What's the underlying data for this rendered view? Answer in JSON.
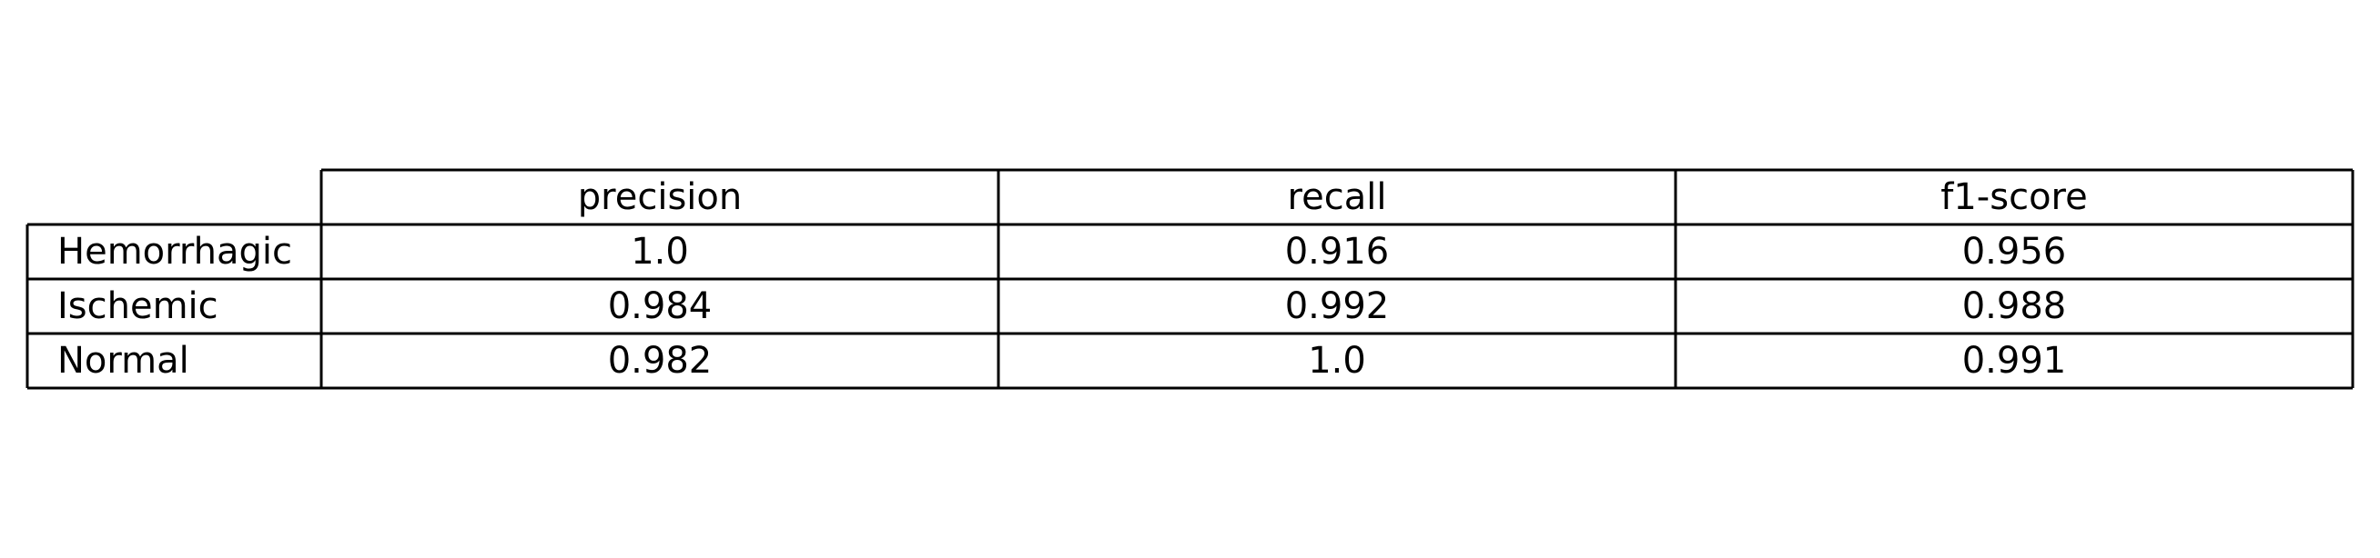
{
  "chart_data": {
    "type": "table",
    "columns": [
      "precision",
      "recall",
      "f1-score"
    ],
    "rows": [
      {
        "label": "Hemorrhagic",
        "values": [
          "1.0",
          "0.916",
          "0.956"
        ]
      },
      {
        "label": "Ischemic",
        "values": [
          "0.984",
          "0.992",
          "0.988"
        ]
      },
      {
        "label": "Normal",
        "values": [
          "0.982",
          "1.0",
          "0.991"
        ]
      }
    ]
  }
}
